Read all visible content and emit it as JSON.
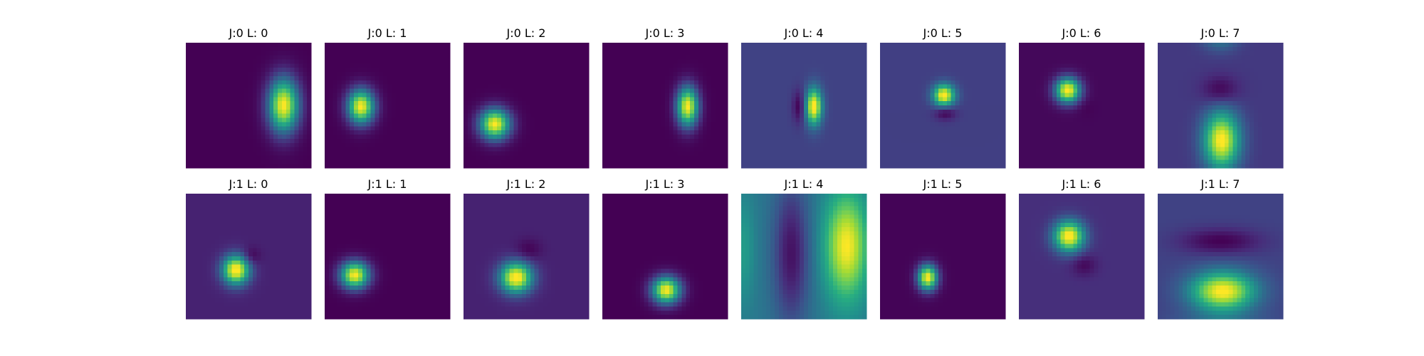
{
  "chart_data": {
    "type": "heatmap",
    "colormap": "viridis",
    "axes": "off",
    "grid": false,
    "layout": {
      "rows": 2,
      "cols": 8
    },
    "panels": [
      {
        "title": "J:0 L: 0",
        "background": 0.0,
        "blobs": [
          {
            "cx": 0.78,
            "cy": 0.5,
            "sx": 0.085,
            "sy": 0.15,
            "amp": 1.0
          }
        ]
      },
      {
        "title": "J:0 L: 1",
        "background": 0.0,
        "blobs": [
          {
            "cx": 0.29,
            "cy": 0.51,
            "sx": 0.075,
            "sy": 0.095,
            "amp": 1.0
          }
        ]
      },
      {
        "title": "J:0 L: 2",
        "background": 0.0,
        "blobs": [
          {
            "cx": 0.25,
            "cy": 0.65,
            "sx": 0.085,
            "sy": 0.085,
            "amp": 1.0
          }
        ]
      },
      {
        "title": "J:0 L: 3",
        "background": 0.0,
        "blobs": [
          {
            "cx": 0.68,
            "cy": 0.51,
            "sx": 0.06,
            "sy": 0.11,
            "amp": 1.0
          }
        ]
      },
      {
        "title": "J:0 L: 4",
        "background": 0.2,
        "blobs": [
          {
            "cx": 0.58,
            "cy": 0.51,
            "sx": 0.045,
            "sy": 0.1,
            "amp": 0.85
          },
          {
            "cx": 0.46,
            "cy": 0.51,
            "sx": 0.035,
            "sy": 0.09,
            "amp": -0.2
          }
        ]
      },
      {
        "title": "J:0 L: 5",
        "background": 0.19,
        "blobs": [
          {
            "cx": 0.51,
            "cy": 0.42,
            "sx": 0.06,
            "sy": 0.06,
            "amp": 0.85
          },
          {
            "cx": 0.52,
            "cy": 0.56,
            "sx": 0.06,
            "sy": 0.04,
            "amp": -0.2
          }
        ]
      },
      {
        "title": "J:0 L: 6",
        "background": 0.02,
        "blobs": [
          {
            "cx": 0.39,
            "cy": 0.38,
            "sx": 0.07,
            "sy": 0.07,
            "amp": 1.0
          },
          {
            "cx": 0.53,
            "cy": 0.52,
            "sx": 0.05,
            "sy": 0.05,
            "amp": -0.02
          }
        ]
      },
      {
        "title": "J:0 L: 7",
        "background": 0.17,
        "blobs": [
          {
            "cx": 0.51,
            "cy": 0.78,
            "sx": 0.1,
            "sy": 0.16,
            "amp": 0.85
          },
          {
            "cx": 0.5,
            "cy": 0.38,
            "sx": 0.1,
            "sy": 0.08,
            "amp": -0.17
          },
          {
            "cx": 0.5,
            "cy": -0.05,
            "sx": 0.1,
            "sy": 0.08,
            "amp": 0.25
          }
        ]
      },
      {
        "title": "J:1 L: 0",
        "background": 0.1,
        "blobs": [
          {
            "cx": 0.4,
            "cy": 0.61,
            "sx": 0.075,
            "sy": 0.08,
            "amp": 0.95
          },
          {
            "cx": 0.52,
            "cy": 0.5,
            "sx": 0.05,
            "sy": 0.05,
            "amp": -0.12
          }
        ]
      },
      {
        "title": "J:1 L: 1",
        "background": 0.0,
        "blobs": [
          {
            "cx": 0.24,
            "cy": 0.65,
            "sx": 0.08,
            "sy": 0.075,
            "amp": 1.0
          }
        ]
      },
      {
        "title": "J:1 L: 2",
        "background": 0.1,
        "blobs": [
          {
            "cx": 0.42,
            "cy": 0.67,
            "sx": 0.09,
            "sy": 0.085,
            "amp": 0.95
          },
          {
            "cx": 0.52,
            "cy": 0.45,
            "sx": 0.07,
            "sy": 0.06,
            "amp": -0.1
          }
        ]
      },
      {
        "title": "J:1 L: 3",
        "background": 0.0,
        "blobs": [
          {
            "cx": 0.51,
            "cy": 0.77,
            "sx": 0.08,
            "sy": 0.075,
            "amp": 1.0
          }
        ]
      },
      {
        "title": "J:1 L: 4",
        "background": 0.4,
        "blobs": [
          {
            "cx": 0.84,
            "cy": 0.42,
            "sx": 0.12,
            "sy": 0.3,
            "amp": 0.6
          },
          {
            "cx": 0.4,
            "cy": 0.48,
            "sx": 0.1,
            "sy": 0.4,
            "amp": -0.35
          },
          {
            "cx": 0.02,
            "cy": 0.45,
            "sx": 0.06,
            "sy": 0.3,
            "amp": 0.15
          }
        ]
      },
      {
        "title": "J:1 L: 5",
        "background": 0.01,
        "blobs": [
          {
            "cx": 0.38,
            "cy": 0.67,
            "sx": 0.055,
            "sy": 0.07,
            "amp": 1.0
          }
        ]
      },
      {
        "title": "J:1 L: 6",
        "background": 0.14,
        "blobs": [
          {
            "cx": 0.4,
            "cy": 0.34,
            "sx": 0.085,
            "sy": 0.085,
            "amp": 0.9
          },
          {
            "cx": 0.52,
            "cy": 0.57,
            "sx": 0.07,
            "sy": 0.06,
            "amp": -0.12
          }
        ]
      },
      {
        "title": "J:1 L: 7",
        "background": 0.2,
        "blobs": [
          {
            "cx": 0.52,
            "cy": 0.78,
            "sx": 0.18,
            "sy": 0.11,
            "amp": 0.82
          },
          {
            "cx": 0.5,
            "cy": 0.38,
            "sx": 0.22,
            "sy": 0.07,
            "amp": -0.2
          },
          {
            "cx": 0.5,
            "cy": 1.02,
            "sx": 0.25,
            "sy": 0.06,
            "amp": 0.12
          }
        ]
      }
    ]
  }
}
